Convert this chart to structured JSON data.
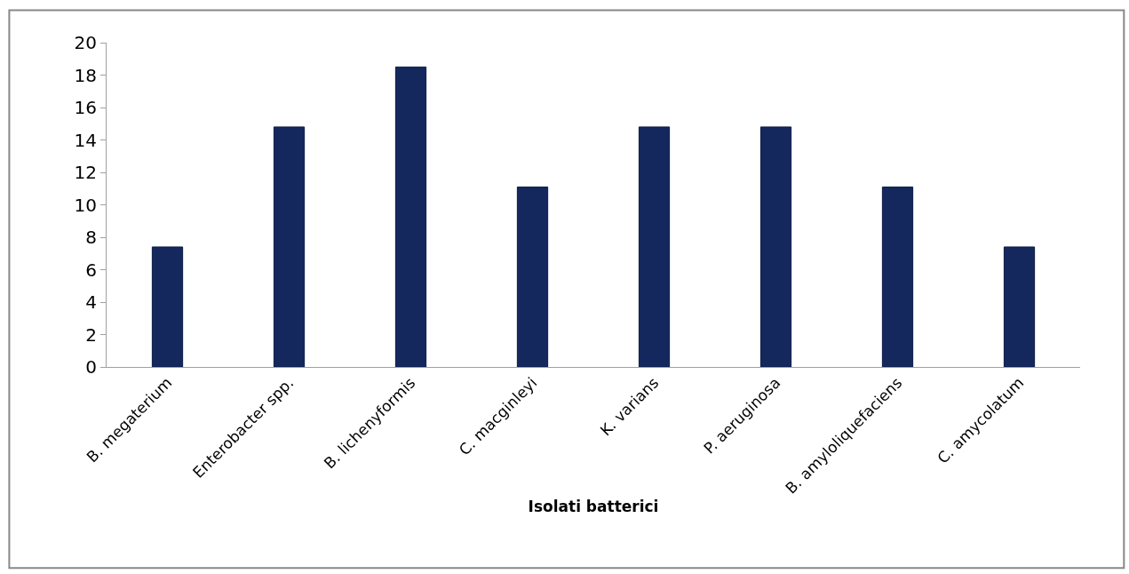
{
  "chart_data": {
    "type": "bar",
    "xlabel": "Isolati batterici",
    "categories": [
      "B. megaterium",
      "Enterobacter spp.",
      "B. lichenyformis",
      "C. macginleyi",
      "K. varians",
      "P. aeruginosa",
      "B. amyloliquefaciens",
      "C. amycolatum"
    ],
    "values": [
      7.4,
      14.8,
      18.5,
      11.1,
      14.8,
      14.8,
      11.1,
      7.4
    ],
    "color": "#14285e",
    "ylim": [
      0,
      20
    ],
    "yticks": [
      0,
      2,
      4,
      6,
      8,
      10,
      12,
      14,
      16,
      18,
      20
    ],
    "legend": false
  }
}
